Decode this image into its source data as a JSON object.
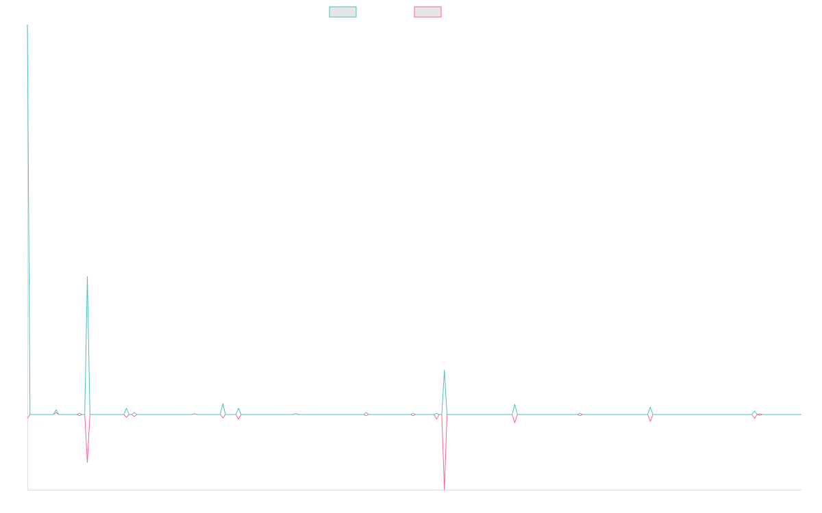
{
  "chart_data": {
    "type": "line",
    "title": "",
    "xlabel": "",
    "ylabel": "",
    "length": 298,
    "default_value": 0,
    "ylim": [
      -0.193,
      1.0
    ],
    "grid": false,
    "legend_placement": "top-center",
    "series": [
      {
        "name": "",
        "color": "#4bc0c0",
        "nonzero": [
          [
            0,
            1.0
          ],
          [
            11,
            0.012
          ],
          [
            20,
            0.003
          ],
          [
            23,
            0.354
          ],
          [
            38,
            0.016
          ],
          [
            41,
            0.005
          ],
          [
            64,
            0.002
          ],
          [
            75,
            0.028
          ],
          [
            81,
            0.016
          ],
          [
            103,
            0.002
          ],
          [
            130,
            0.005
          ],
          [
            148,
            0.003
          ],
          [
            157,
            0.003
          ],
          [
            160,
            0.114
          ],
          [
            187,
            0.026
          ],
          [
            212,
            0.003
          ],
          [
            239,
            0.019
          ],
          [
            279,
            0.009
          ],
          [
            281,
            0.002
          ]
        ]
      },
      {
        "name": "",
        "color": "#ff6384",
        "nonzero": [
          [
            0,
            -0.01
          ],
          [
            11,
            0.005
          ],
          [
            20,
            -0.003
          ],
          [
            23,
            -0.123
          ],
          [
            38,
            -0.007
          ],
          [
            41,
            -0.005
          ],
          [
            64,
            0.002
          ],
          [
            75,
            -0.009
          ],
          [
            81,
            -0.012
          ],
          [
            103,
            0.002
          ],
          [
            130,
            -0.003
          ],
          [
            148,
            -0.003
          ],
          [
            157,
            -0.012
          ],
          [
            160,
            -0.193
          ],
          [
            187,
            -0.021
          ],
          [
            212,
            -0.003
          ],
          [
            239,
            -0.018
          ],
          [
            279,
            -0.01
          ],
          [
            281,
            -0.002
          ]
        ]
      }
    ]
  }
}
